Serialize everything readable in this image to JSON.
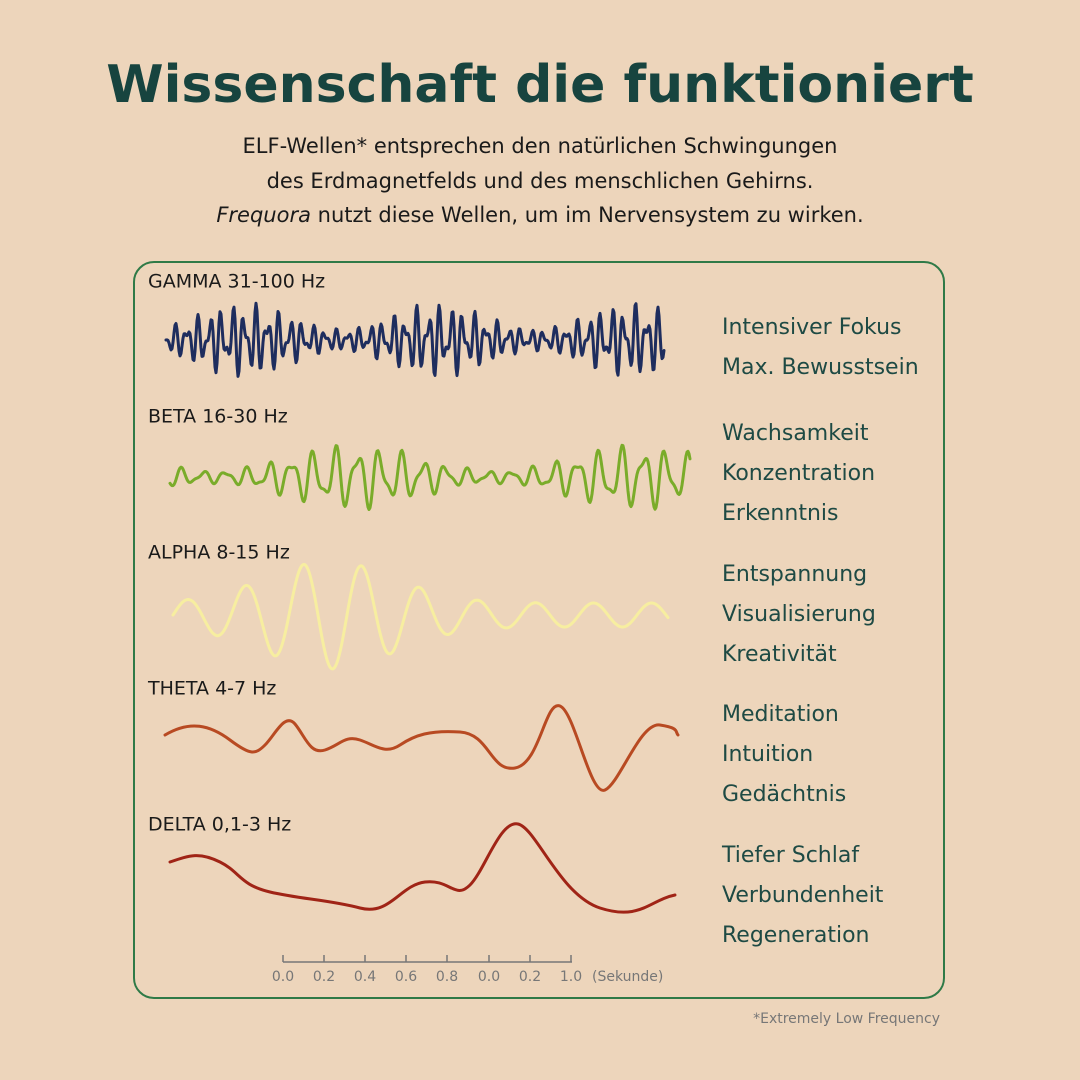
{
  "header": {
    "title": "Wissenschaft die funktioniert",
    "lines": [
      "ELF-Wellen* entsprechen den natürlichen Schwingungen",
      "des Erdmagnetfelds und des menschlichen Gehirns."
    ],
    "line3": {
      "emphasis": "Frequora",
      "text": " nutzt diese Wellen, um im Nervensystem zu wirken."
    }
  },
  "waves": [
    {
      "label": "GAMMA 31-100 Hz",
      "effects": [
        "Intensiver Fokus",
        "Max. Bewusstsein"
      ]
    },
    {
      "label": "BETA 16-30 Hz",
      "effects": [
        "Wachsamkeit",
        "Konzentration",
        "Erkenntnis"
      ]
    },
    {
      "label": "ALPHA 8-15 Hz",
      "effects": [
        "Entspannung",
        "Visualisierung",
        "Kreativität"
      ]
    },
    {
      "label": "THETA 4-7 Hz",
      "effects": [
        "Meditation",
        "Intuition",
        "Gedächtnis"
      ]
    },
    {
      "label": "DELTA 0,1-3 Hz",
      "effects": [
        "Tiefer Schlaf",
        "Verbundenheit",
        "Regeneration"
      ]
    }
  ],
  "scale": {
    "ticks": [
      "0.0",
      "0.2",
      "0.4",
      "0.6",
      "0.8",
      "0.0",
      "0.2",
      "1.0"
    ],
    "unit": "(Sekunde)"
  },
  "footnote": "*Extremely Low Frequency"
}
